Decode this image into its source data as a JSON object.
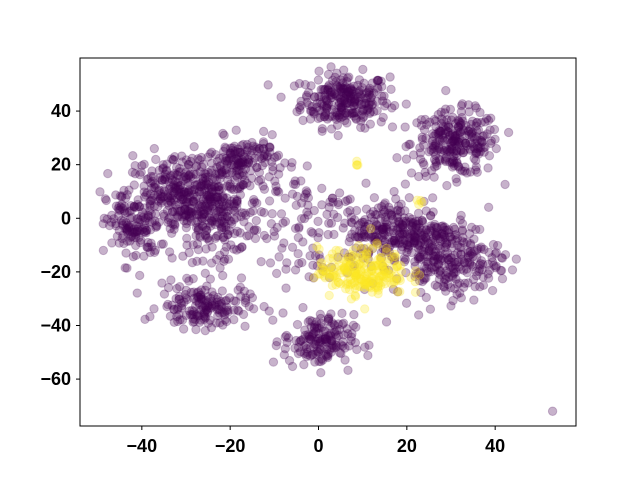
{
  "chart_data": {
    "type": "scatter",
    "title": "",
    "xlabel": "",
    "ylabel": "",
    "xlim": [
      -54,
      58.3
    ],
    "ylim": [
      -77.5,
      59.8
    ],
    "x_ticks": [
      -40,
      -20,
      0,
      20,
      40
    ],
    "y_ticks": [
      -60,
      -40,
      -20,
      0,
      20,
      40
    ],
    "x_tick_labels": [
      "−40",
      "−20",
      "0",
      "20",
      "40"
    ],
    "y_tick_labels": [
      "−60",
      "−40",
      "−20",
      "0",
      "20",
      "40"
    ],
    "grid": false,
    "legend": "none",
    "marker_alpha": 0.3,
    "class_colors": {
      "0": "#440154",
      "1": "#fde725"
    },
    "clusters_note_free": true,
    "clusters": [
      {
        "class": 0,
        "center": [
          6,
          44
        ],
        "spread": [
          5,
          5
        ],
        "count": 260
      },
      {
        "class": 0,
        "center": [
          31,
          28
        ],
        "spread": [
          5,
          6
        ],
        "count": 260
      },
      {
        "class": 0,
        "center": [
          -32,
          8
        ],
        "spread": [
          6,
          8
        ],
        "count": 300
      },
      {
        "class": 0,
        "center": [
          -42,
          -3
        ],
        "spread": [
          3,
          7
        ],
        "count": 120
      },
      {
        "class": 0,
        "center": [
          -23,
          3
        ],
        "spread": [
          5,
          9
        ],
        "count": 220
      },
      {
        "class": 0,
        "center": [
          -17,
          22
        ],
        "spread": [
          4,
          4
        ],
        "count": 130
      },
      {
        "class": 0,
        "center": [
          -26,
          -33
        ],
        "spread": [
          5,
          4
        ],
        "count": 160
      },
      {
        "class": 0,
        "center": [
          0,
          -46
        ],
        "spread": [
          4,
          5
        ],
        "count": 160
      },
      {
        "class": 0,
        "center": [
          18,
          -5
        ],
        "spread": [
          6,
          6
        ],
        "count": 260
      },
      {
        "class": 0,
        "center": [
          29,
          -15
        ],
        "spread": [
          6,
          7
        ],
        "count": 260
      },
      {
        "class": 0,
        "center": [
          -5,
          -3
        ],
        "spread": [
          9,
          14
        ],
        "count": 130
      },
      {
        "class": 1,
        "center": [
          10,
          -20
        ],
        "spread": [
          5,
          4.5
        ],
        "count": 220
      },
      {
        "class": 1,
        "center": [
          9,
          20
        ],
        "spread": [
          0.6,
          0.6
        ],
        "count": 4
      },
      {
        "class": 1,
        "center": [
          23,
          6
        ],
        "spread": [
          0.6,
          0.6
        ],
        "count": 4
      }
    ],
    "points": [
      {
        "x": 53,
        "y": -72,
        "class": 0
      }
    ]
  }
}
